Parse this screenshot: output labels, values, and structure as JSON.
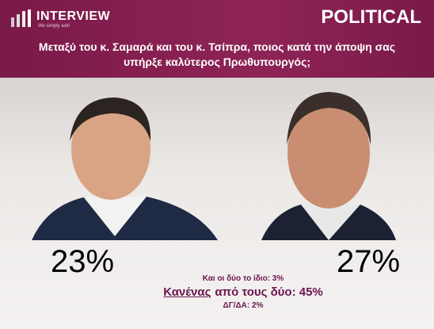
{
  "header": {
    "logo": "INTERVIEW",
    "tagline": "We simply ask!",
    "label": "POLITICAL",
    "question": "Μεταξύ του κ. Σαμαρά και του κ. Τσίπρα, ποιος κατά την άποψη σας υπήρξε καλύτερος Πρωθυπουργός;"
  },
  "results": {
    "left": "23%",
    "right": "27%",
    "both": "Και οι δύο το ίδιο: 3%",
    "neither_word": "Κανένας",
    "neither_rest": "από τους δύο: 45%",
    "dk": "ΔΓ/ΔΑ: 2%"
  }
}
